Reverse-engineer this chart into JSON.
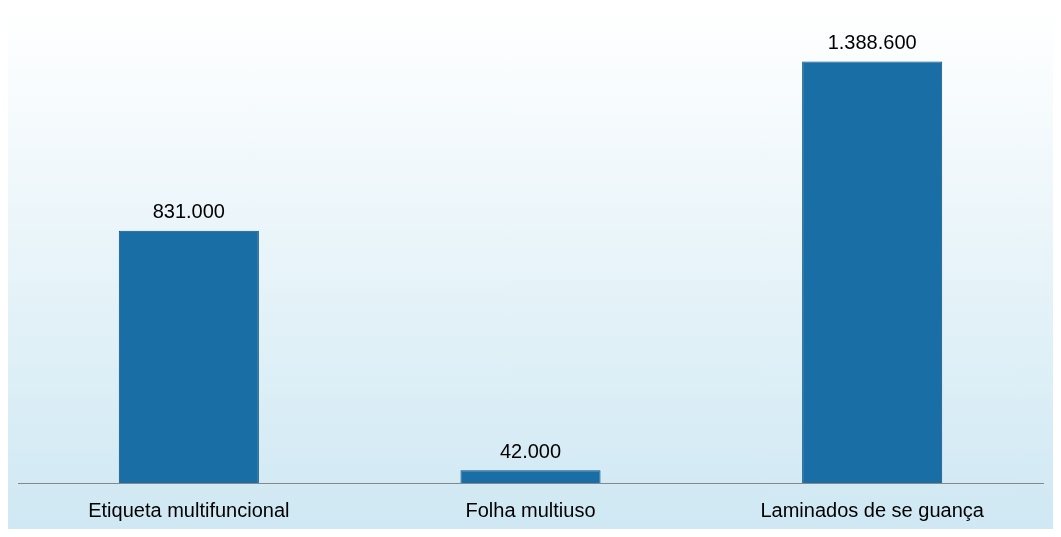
{
  "chart_data": {
    "type": "bar",
    "categories": [
      "Etiqueta multifuncional",
      "Folha multiuso",
      "Laminados de se guança"
    ],
    "values": [
      831000,
      42000,
      1388600
    ],
    "color": "#1a6ea6",
    "value_labels": [
      "831.000",
      "42.000",
      "1.388.600"
    ],
    "grid": false,
    "legend": false
  }
}
